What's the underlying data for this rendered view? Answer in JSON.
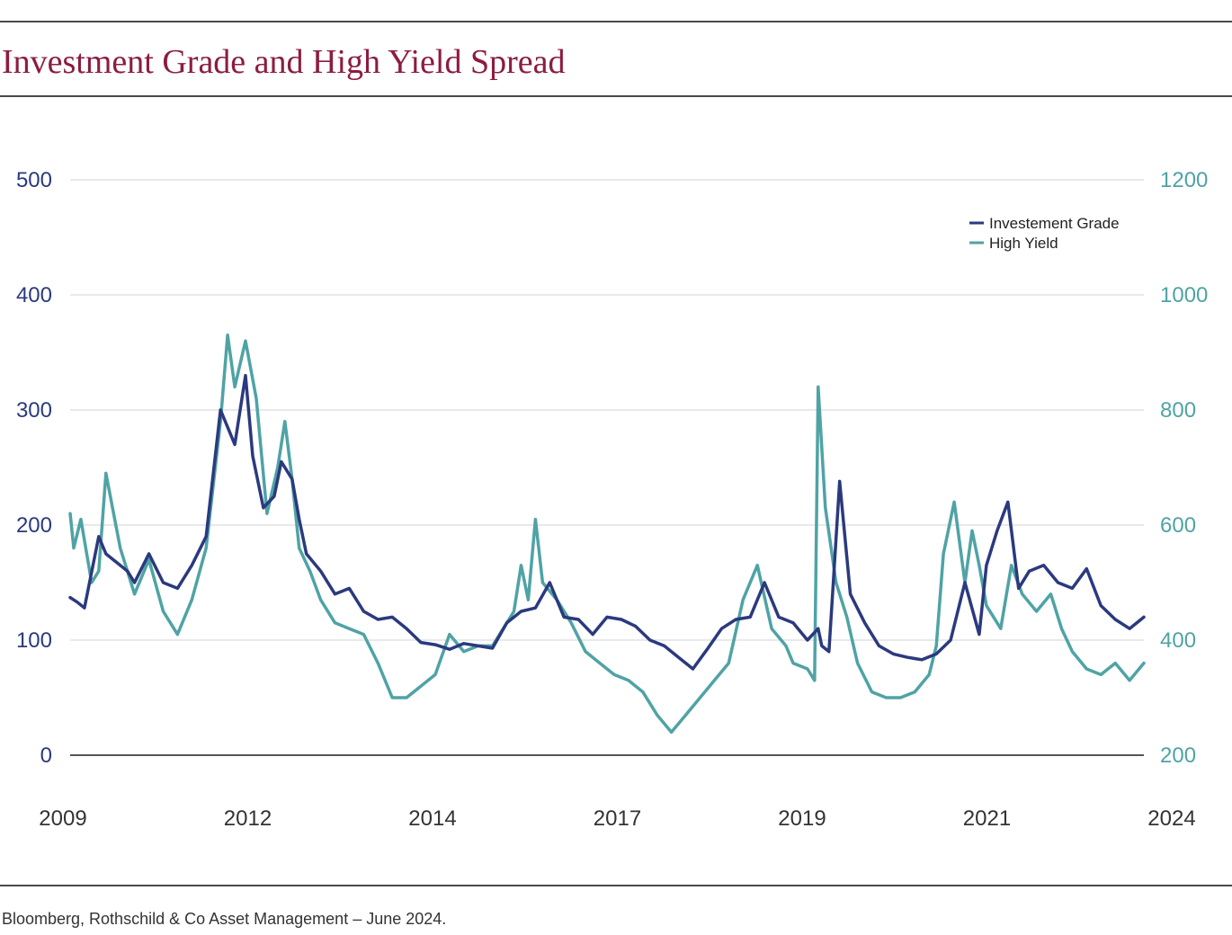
{
  "colors": {
    "title": "#8c1d40",
    "left_axis": "#2b3a7e",
    "right_axis": "#4fa3a5",
    "grid": "#d0d3d8",
    "axis_line": "#555555",
    "tick_x": "#333333"
  },
  "page": {
    "title": "Investment Grade and High Yield Spread",
    "source": "Bloomberg, Rothschild & Co Asset Management – June 2024."
  },
  "chart_data": {
    "type": "line",
    "title": "Investment Grade and High Yield Spread",
    "xlabel": "",
    "ylabel": "",
    "x_tick_labels": [
      "2009",
      "2012",
      "2014",
      "2017",
      "2019",
      "2021",
      "2024"
    ],
    "x_range": [
      2009.0,
      2024.0
    ],
    "y_left": {
      "range": [
        0,
        500
      ],
      "ticks": [
        0,
        100,
        200,
        300,
        400,
        500
      ]
    },
    "y_right": {
      "range": [
        200,
        1200
      ],
      "ticks": [
        200,
        400,
        600,
        800,
        1000,
        1200
      ]
    },
    "grid": "horizontal",
    "legend_position": "top-right",
    "series": [
      {
        "name": "Investement Grade",
        "axis": "left",
        "color": "#2b3a7e",
        "x": [
          2009.0,
          2009.1,
          2009.2,
          2009.4,
          2009.5,
          2009.8,
          2009.9,
          2010.1,
          2010.3,
          2010.5,
          2010.7,
          2010.9,
          2011.1,
          2011.3,
          2011.45,
          2011.55,
          2011.7,
          2011.85,
          2011.95,
          2012.1,
          2012.2,
          2012.3,
          2012.5,
          2012.7,
          2012.9,
          2013.1,
          2013.3,
          2013.5,
          2013.7,
          2013.9,
          2014.1,
          2014.3,
          2014.5,
          2014.7,
          2014.9,
          2015.1,
          2015.3,
          2015.5,
          2015.7,
          2015.9,
          2016.1,
          2016.3,
          2016.5,
          2016.7,
          2016.9,
          2017.1,
          2017.3,
          2017.5,
          2017.7,
          2017.9,
          2018.1,
          2018.3,
          2018.5,
          2018.7,
          2018.9,
          2019.1,
          2019.3,
          2019.45,
          2019.5,
          2019.6,
          2019.75,
          2019.9,
          2020.1,
          2020.3,
          2020.5,
          2020.7,
          2020.9,
          2021.1,
          2021.3,
          2021.5,
          2021.7,
          2021.8,
          2021.95,
          2022.1,
          2022.25,
          2022.4,
          2022.6,
          2022.8,
          2023.0,
          2023.2,
          2023.4,
          2023.6,
          2023.8,
          2024.0
        ],
        "y": [
          137,
          133,
          128,
          190,
          175,
          160,
          150,
          175,
          150,
          145,
          165,
          190,
          300,
          270,
          330,
          260,
          215,
          225,
          255,
          240,
          205,
          175,
          160,
          140,
          145,
          125,
          118,
          120,
          110,
          98,
          96,
          92,
          97,
          95,
          93,
          115,
          125,
          128,
          150,
          120,
          118,
          105,
          120,
          118,
          112,
          100,
          95,
          85,
          75,
          92,
          110,
          118,
          120,
          150,
          120,
          115,
          100,
          110,
          95,
          90,
          238,
          140,
          115,
          95,
          88,
          85,
          83,
          88,
          100,
          150,
          105,
          165,
          195,
          220,
          145,
          160,
          165,
          150,
          145,
          162,
          130,
          118,
          110,
          120
        ]
      },
      {
        "name": "High Yield",
        "axis": "right",
        "color": "#4fa3a5",
        "x": [
          2009.0,
          2009.05,
          2009.15,
          2009.3,
          2009.4,
          2009.5,
          2009.7,
          2009.9,
          2010.1,
          2010.3,
          2010.5,
          2010.7,
          2010.9,
          2011.1,
          2011.2,
          2011.3,
          2011.45,
          2011.6,
          2011.75,
          2011.9,
          2012.0,
          2012.1,
          2012.2,
          2012.35,
          2012.5,
          2012.7,
          2012.9,
          2013.1,
          2013.3,
          2013.5,
          2013.7,
          2013.9,
          2014.1,
          2014.3,
          2014.5,
          2014.7,
          2014.9,
          2015.1,
          2015.2,
          2015.3,
          2015.4,
          2015.5,
          2015.6,
          2015.8,
          2016.0,
          2016.2,
          2016.4,
          2016.6,
          2016.8,
          2017.0,
          2017.2,
          2017.4,
          2017.6,
          2017.8,
          2018.0,
          2018.2,
          2018.4,
          2018.6,
          2018.8,
          2019.0,
          2019.1,
          2019.3,
          2019.4,
          2019.45,
          2019.55,
          2019.7,
          2019.85,
          2020.0,
          2020.2,
          2020.4,
          2020.6,
          2020.8,
          2021.0,
          2021.1,
          2021.2,
          2021.35,
          2021.5,
          2021.6,
          2021.7,
          2021.8,
          2022.0,
          2022.15,
          2022.3,
          2022.5,
          2022.7,
          2022.85,
          2023.0,
          2023.2,
          2023.4,
          2023.6,
          2023.8,
          2024.0
        ],
        "y": [
          620,
          560,
          610,
          500,
          520,
          690,
          560,
          480,
          540,
          450,
          410,
          470,
          560,
          780,
          930,
          840,
          920,
          820,
          620,
          700,
          780,
          680,
          560,
          520,
          470,
          430,
          420,
          410,
          360,
          300,
          300,
          320,
          340,
          410,
          380,
          390,
          390,
          430,
          450,
          530,
          470,
          610,
          500,
          470,
          430,
          380,
          360,
          340,
          330,
          310,
          270,
          240,
          270,
          300,
          330,
          360,
          470,
          530,
          420,
          390,
          360,
          350,
          330,
          840,
          630,
          500,
          440,
          360,
          310,
          300,
          300,
          310,
          340,
          390,
          550,
          640,
          500,
          590,
          530,
          460,
          420,
          530,
          480,
          450,
          480,
          420,
          380,
          350,
          340,
          360,
          330,
          360
        ]
      }
    ]
  }
}
